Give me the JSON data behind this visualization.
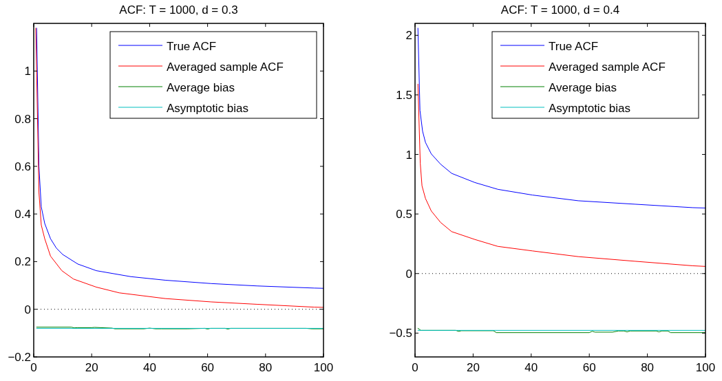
{
  "chart_data": [
    {
      "type": "line",
      "title": "ACF: T = 1000, d = 0.3",
      "xlim": [
        0,
        100
      ],
      "xticks": [
        0,
        20,
        40,
        60,
        80,
        100
      ],
      "ylim": [
        -0.2,
        1.2
      ],
      "yticks": [
        {
          "value": -0.2,
          "label": "−0.2"
        },
        0,
        0.2,
        0.4,
        0.6,
        0.8,
        1
      ],
      "legend": "top right",
      "ref_lines": [
        {
          "axis": "y",
          "value": 0,
          "line_style": "dotted",
          "color": "#000000"
        }
      ],
      "series": [
        {
          "name": "True ACF",
          "color": "#0000ff",
          "x": [
            1,
            1.8,
            2.6,
            3.8,
            5.8,
            7.8,
            10,
            15.2,
            21.6,
            33.5,
            45.4,
            61.2,
            77,
            96.8,
            100
          ],
          "values": [
            1.18,
            0.6,
            0.43,
            0.36,
            0.296,
            0.257,
            0.23,
            0.19,
            0.162,
            0.137,
            0.122,
            0.108,
            0.098,
            0.089,
            0.088
          ]
        },
        {
          "name": "Averaged sample ACF",
          "color": "#ff0000",
          "x": [
            0.7,
            1.8,
            2.6,
            3.8,
            5.8,
            9.7,
            13.7,
            21.6,
            29.5,
            45.4,
            61.2,
            77,
            96.8,
            100
          ],
          "values": [
            1.18,
            0.49,
            0.354,
            0.296,
            0.223,
            0.162,
            0.127,
            0.093,
            0.069,
            0.045,
            0.031,
            0.021,
            0.009,
            0.008
          ]
        },
        {
          "name": "Average bias",
          "color": "#008000",
          "x": [
            1,
            13,
            14,
            15,
            20,
            21,
            27,
            28,
            38,
            40,
            42,
            44,
            53,
            59,
            60,
            61,
            66,
            67,
            68,
            94,
            96,
            100
          ],
          "values": [
            -0.075,
            -0.075,
            -0.078,
            -0.077,
            -0.077,
            -0.076,
            -0.079,
            -0.082,
            -0.082,
            -0.079,
            -0.082,
            -0.082,
            -0.082,
            -0.08,
            -0.083,
            -0.08,
            -0.08,
            -0.083,
            -0.08,
            -0.08,
            -0.082,
            -0.082
          ]
        },
        {
          "name": "Asymptotic bias",
          "color": "#00bfbf",
          "x": [
            1,
            100
          ],
          "values": [
            -0.08,
            -0.08
          ]
        }
      ]
    },
    {
      "type": "line",
      "title": "ACF: T = 1000, d = 0.4",
      "xlim": [
        0,
        100
      ],
      "xticks": [
        0,
        20,
        40,
        60,
        80,
        100
      ],
      "ylim": [
        -0.7,
        2.1
      ],
      "yticks": [
        {
          "value": -0.5,
          "label": "−0.5"
        },
        0,
        0.5,
        1,
        1.5,
        2
      ],
      "legend": "top right",
      "ref_lines": [
        {
          "axis": "y",
          "value": 0,
          "line_style": "dotted",
          "color": "#000000"
        }
      ],
      "series": [
        {
          "name": "True ACF",
          "color": "#0000ff",
          "x": [
            1,
            1.7,
            2.6,
            3.6,
            5.6,
            8.8,
            12.6,
            20.6,
            28.5,
            40.4,
            56.2,
            75.8,
            95.7,
            100
          ],
          "values": [
            2.06,
            1.37,
            1.195,
            1.1,
            1.004,
            0.918,
            0.841,
            0.764,
            0.707,
            0.659,
            0.611,
            0.582,
            0.553,
            0.55
          ]
        },
        {
          "name": "Averaged sample ACF",
          "color": "#ff0000",
          "x": [
            1,
            1.8,
            2.4,
            3.6,
            5.6,
            8.8,
            12.6,
            20.6,
            28.5,
            40.4,
            56.2,
            75.8,
            95.7,
            100
          ],
          "values": [
            1.59,
            0.927,
            0.736,
            0.63,
            0.525,
            0.429,
            0.352,
            0.286,
            0.228,
            0.19,
            0.142,
            0.103,
            0.065,
            0.06
          ]
        },
        {
          "name": "Average bias",
          "color": "#008000",
          "x": [
            1,
            2,
            14,
            15,
            16,
            27,
            28,
            60,
            61,
            62,
            68,
            70,
            72,
            73,
            74,
            83,
            84,
            85,
            87,
            88,
            100
          ],
          "values": [
            -0.46,
            -0.477,
            -0.477,
            -0.485,
            -0.48,
            -0.48,
            -0.496,
            -0.496,
            -0.485,
            -0.492,
            -0.492,
            -0.482,
            -0.482,
            -0.49,
            -0.482,
            -0.482,
            -0.49,
            -0.482,
            -0.482,
            -0.496,
            -0.496
          ]
        },
        {
          "name": "Asymptotic bias",
          "color": "#00bfbf",
          "x": [
            1,
            100
          ],
          "values": [
            -0.477,
            -0.477
          ]
        }
      ]
    }
  ]
}
